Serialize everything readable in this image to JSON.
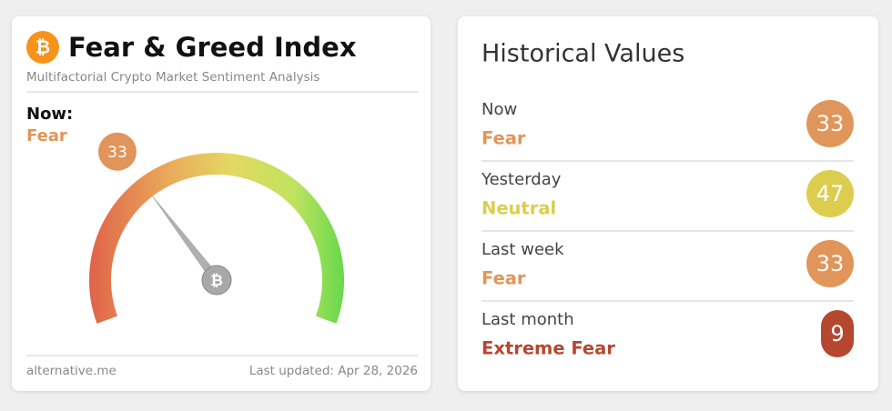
{
  "header": {
    "title": "Fear & Greed Index",
    "subtitle": "Multifactorial Crypto Market Sentiment Analysis"
  },
  "now": {
    "label": "Now:",
    "classification": "Fear",
    "color": "#e0955a"
  },
  "gauge": {
    "value": 33,
    "range": [
      0,
      100
    ],
    "color": "#e0955a"
  },
  "footer": {
    "source": "alternative.me",
    "updated": "Last updated: Apr 28, 2026"
  },
  "history": {
    "title": "Historical Values",
    "rows": [
      {
        "label": "Now",
        "classification": "Fear",
        "value": 33,
        "color": "#e0955a"
      },
      {
        "label": "Yesterday",
        "classification": "Neutral",
        "value": 47,
        "color": "#dccd4f"
      },
      {
        "label": "Last week",
        "classification": "Fear",
        "value": 33,
        "color": "#e0955a"
      },
      {
        "label": "Last month",
        "classification": "Extreme Fear",
        "value": 9,
        "color": "#b5472e"
      }
    ]
  }
}
